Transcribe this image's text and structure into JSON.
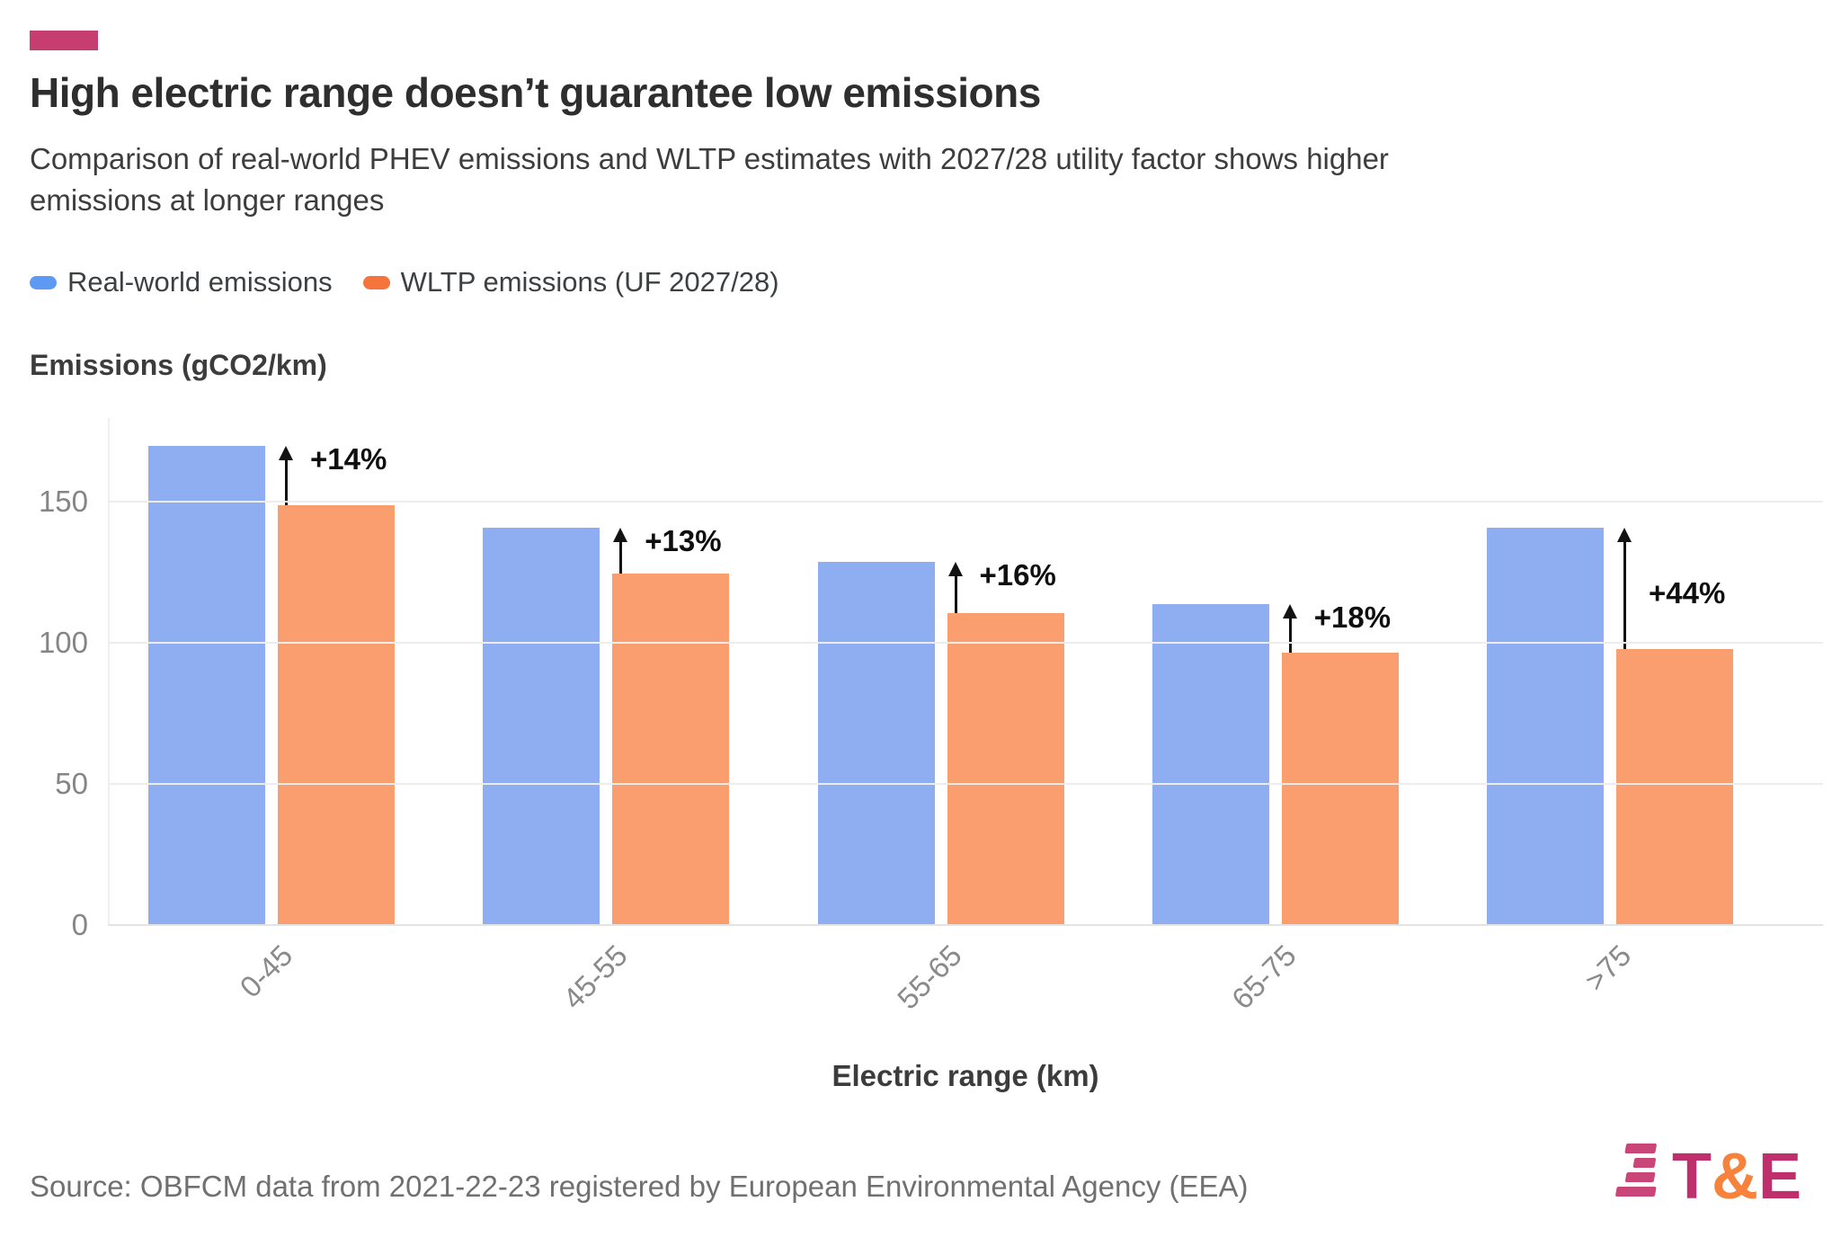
{
  "page": {
    "accent_color": "#C63D6F",
    "title": "High electric range doesn’t guarantee low emissions",
    "subtitle_lines": [
      "Comparison of real-world PHEV emissions and WLTP estimates with 2027/28 utility factor shows higher",
      "emissions at longer ranges"
    ],
    "source": "Source: OBFCM data from 2021-22-23 registered by European Environmental Agency (EEA)"
  },
  "legend": {
    "items": [
      {
        "label": "Real-world emissions",
        "color": "#5E9AF4"
      },
      {
        "label": "WLTP emissions (UF 2027/28)",
        "color": "#F4743C"
      }
    ]
  },
  "chart_data": {
    "type": "bar",
    "title": "High electric range doesn’t guarantee low emissions",
    "categories": [
      "0-45",
      "45-55",
      "55-65",
      "65-75",
      ">75"
    ],
    "series": [
      {
        "name": "Real-world emissions",
        "color": "#8FAEF2",
        "values": [
          170,
          141,
          129,
          114,
          141
        ]
      },
      {
        "name": "WLTP emissions (UF 2027/28)",
        "color": "#FA9E70",
        "values": [
          149,
          125,
          111,
          97,
          98
        ]
      }
    ],
    "annotations": [
      "+14%",
      "+13%",
      "+16%",
      "+18%",
      "+44%"
    ],
    "xlabel": "Electric range (km)",
    "ylabel": "Emissions (gCO2/km)",
    "ylim": [
      0,
      180
    ],
    "yticks": [
      0,
      50,
      100,
      150
    ],
    "grid": true,
    "legend_position": "top-left"
  },
  "logo": {
    "t": "T",
    "amp": "&",
    "e": "E",
    "letter_color": "#BE2F6B",
    "amp_color": "#F6823B",
    "stripe_color": "#CB4678"
  }
}
